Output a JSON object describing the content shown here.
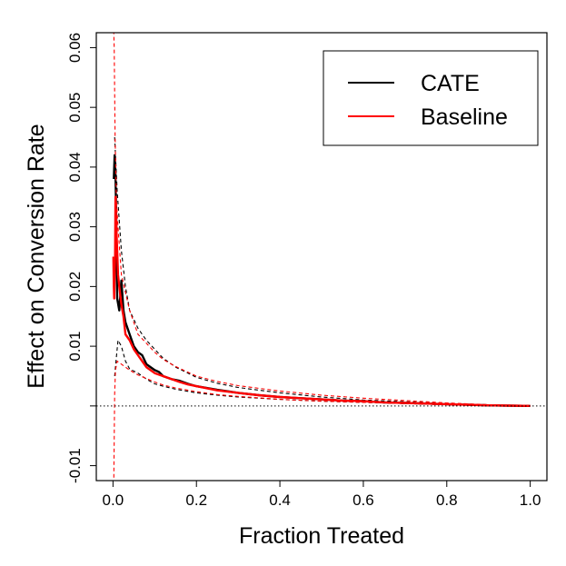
{
  "chart_data": {
    "type": "line",
    "title": "",
    "xlabel": "Fraction Treated",
    "ylabel": "Effect on Conversion Rate",
    "xlim": [
      -0.04,
      1.04
    ],
    "ylim": [
      -0.0125,
      0.0625
    ],
    "x_ticks": [
      0.0,
      0.2,
      0.4,
      0.6,
      0.8,
      1.0
    ],
    "x_tick_labels": [
      "0.0",
      "0.2",
      "0.4",
      "0.6",
      "0.8",
      "1.0"
    ],
    "y_ticks": [
      -0.01,
      0.0,
      0.01,
      0.02,
      0.03,
      0.04,
      0.05,
      0.06
    ],
    "y_tick_labels": [
      "-0.01",
      "",
      "0.01",
      "0.02",
      "0.03",
      "0.04",
      "0.05",
      "0.06"
    ],
    "grid": false,
    "legend_position": "top-right",
    "reference_lines": [
      {
        "axis": "y",
        "value": 0,
        "style": "dotted",
        "color": "#000000"
      }
    ],
    "series": [
      {
        "name": "CATE",
        "color": "#000000",
        "style": "solid",
        "x": [
          0.002,
          0.004,
          0.006,
          0.008,
          0.01,
          0.015,
          0.02,
          0.025,
          0.03,
          0.04,
          0.05,
          0.06,
          0.07,
          0.08,
          0.09,
          0.1,
          0.11,
          0.12,
          0.14,
          0.16,
          0.18,
          0.2,
          0.25,
          0.3,
          0.35,
          0.4,
          0.45,
          0.5,
          0.55,
          0.6,
          0.65,
          0.7,
          0.75,
          0.8,
          0.85,
          0.9,
          0.95,
          1.0
        ],
        "y": [
          0.038,
          0.042,
          0.039,
          0.031,
          0.018,
          0.016,
          0.021,
          0.016,
          0.014,
          0.012,
          0.01,
          0.009,
          0.0085,
          0.007,
          0.0065,
          0.006,
          0.0057,
          0.005,
          0.0045,
          0.0042,
          0.0037,
          0.0033,
          0.0027,
          0.0022,
          0.0018,
          0.0015,
          0.0013,
          0.0011,
          0.0009,
          0.0008,
          0.0006,
          0.0005,
          0.0004,
          0.0003,
          0.0002,
          0.0001,
          5e-05,
          0.0
        ]
      },
      {
        "name": "",
        "color": "#000000",
        "style": "dashed",
        "x": [
          0.004,
          0.006,
          0.01,
          0.02,
          0.03,
          0.04,
          0.06,
          0.08,
          0.1,
          0.12,
          0.15,
          0.2,
          0.25,
          0.3,
          0.4,
          0.5,
          0.6,
          0.7,
          0.8,
          0.9,
          1.0
        ],
        "y": [
          0.045,
          0.042,
          0.036,
          0.026,
          0.02,
          0.016,
          0.013,
          0.011,
          0.0095,
          0.008,
          0.0065,
          0.0048,
          0.0038,
          0.0031,
          0.0022,
          0.0015,
          0.001,
          0.0007,
          0.0004,
          0.0002,
          0.0
        ]
      },
      {
        "name": "",
        "color": "#000000",
        "style": "dashed",
        "x": [
          0.004,
          0.008,
          0.012,
          0.02,
          0.03,
          0.04,
          0.06,
          0.08,
          0.1,
          0.12,
          0.15,
          0.2,
          0.25,
          0.3,
          0.4,
          0.5,
          0.6,
          0.7,
          0.8,
          0.9,
          1.0
        ],
        "y": [
          0.005,
          0.008,
          0.011,
          0.01,
          0.0075,
          0.0062,
          0.0055,
          0.0045,
          0.0037,
          0.0033,
          0.0028,
          0.0022,
          0.0018,
          0.0015,
          0.0011,
          0.0008,
          0.0006,
          0.0004,
          0.0002,
          0.0001,
          0.0
        ]
      },
      {
        "name": "Baseline",
        "color": "#ff0000",
        "style": "solid",
        "x": [
          0.001,
          0.002,
          0.003,
          0.004,
          0.005,
          0.006,
          0.008,
          0.01,
          0.012,
          0.015,
          0.02,
          0.025,
          0.03,
          0.04,
          0.05,
          0.06,
          0.07,
          0.08,
          0.09,
          0.1,
          0.12,
          0.14,
          0.16,
          0.18,
          0.2,
          0.25,
          0.3,
          0.35,
          0.4,
          0.45,
          0.5,
          0.55,
          0.6,
          0.65,
          0.7,
          0.75,
          0.8,
          0.85,
          0.9,
          0.95,
          1.0
        ],
        "y": [
          0.025,
          0.02,
          0.018,
          0.022,
          0.025,
          0.035,
          0.03,
          0.026,
          0.022,
          0.02,
          0.017,
          0.015,
          0.012,
          0.011,
          0.0095,
          0.0085,
          0.0075,
          0.0065,
          0.006,
          0.0055,
          0.005,
          0.0045,
          0.004,
          0.0036,
          0.0033,
          0.0026,
          0.0022,
          0.0018,
          0.0015,
          0.0013,
          0.0011,
          0.0009,
          0.0008,
          0.0006,
          0.0005,
          0.0004,
          0.0003,
          0.0002,
          0.0001,
          5e-05,
          0.0
        ]
      },
      {
        "name": "",
        "color": "#ff0000",
        "style": "dashed",
        "x": [
          0.001,
          0.003,
          0.005,
          0.008,
          0.012,
          0.02,
          0.03,
          0.04,
          0.06,
          0.08,
          0.1,
          0.12,
          0.15,
          0.2,
          0.25,
          0.3,
          0.4,
          0.5,
          0.6,
          0.7,
          0.8,
          0.9,
          1.0
        ],
        "y": [
          0.065,
          0.06,
          0.045,
          0.035,
          0.03,
          0.022,
          0.019,
          0.016,
          0.012,
          0.0105,
          0.009,
          0.0078,
          0.0066,
          0.005,
          0.0041,
          0.0034,
          0.0025,
          0.0018,
          0.0013,
          0.0009,
          0.0005,
          0.0002,
          0.0
        ]
      },
      {
        "name": "",
        "color": "#ff0000",
        "style": "dashed",
        "x": [
          0.002,
          0.004,
          0.006,
          0.01,
          0.02,
          0.03,
          0.04,
          0.06,
          0.08,
          0.1,
          0.12,
          0.15,
          0.2,
          0.25,
          0.3,
          0.4,
          0.5,
          0.6,
          0.7,
          0.8,
          0.9,
          1.0
        ],
        "y": [
          -0.012,
          0.002,
          0.006,
          0.0075,
          0.007,
          0.0065,
          0.006,
          0.0052,
          0.0046,
          0.004,
          0.0035,
          0.003,
          0.0024,
          0.0019,
          0.0016,
          0.0011,
          0.0008,
          0.0006,
          0.0004,
          0.0002,
          0.0001,
          0.0
        ]
      }
    ],
    "legend": [
      {
        "label": "CATE",
        "color": "#000000"
      },
      {
        "label": "Baseline",
        "color": "#ff0000"
      }
    ]
  }
}
